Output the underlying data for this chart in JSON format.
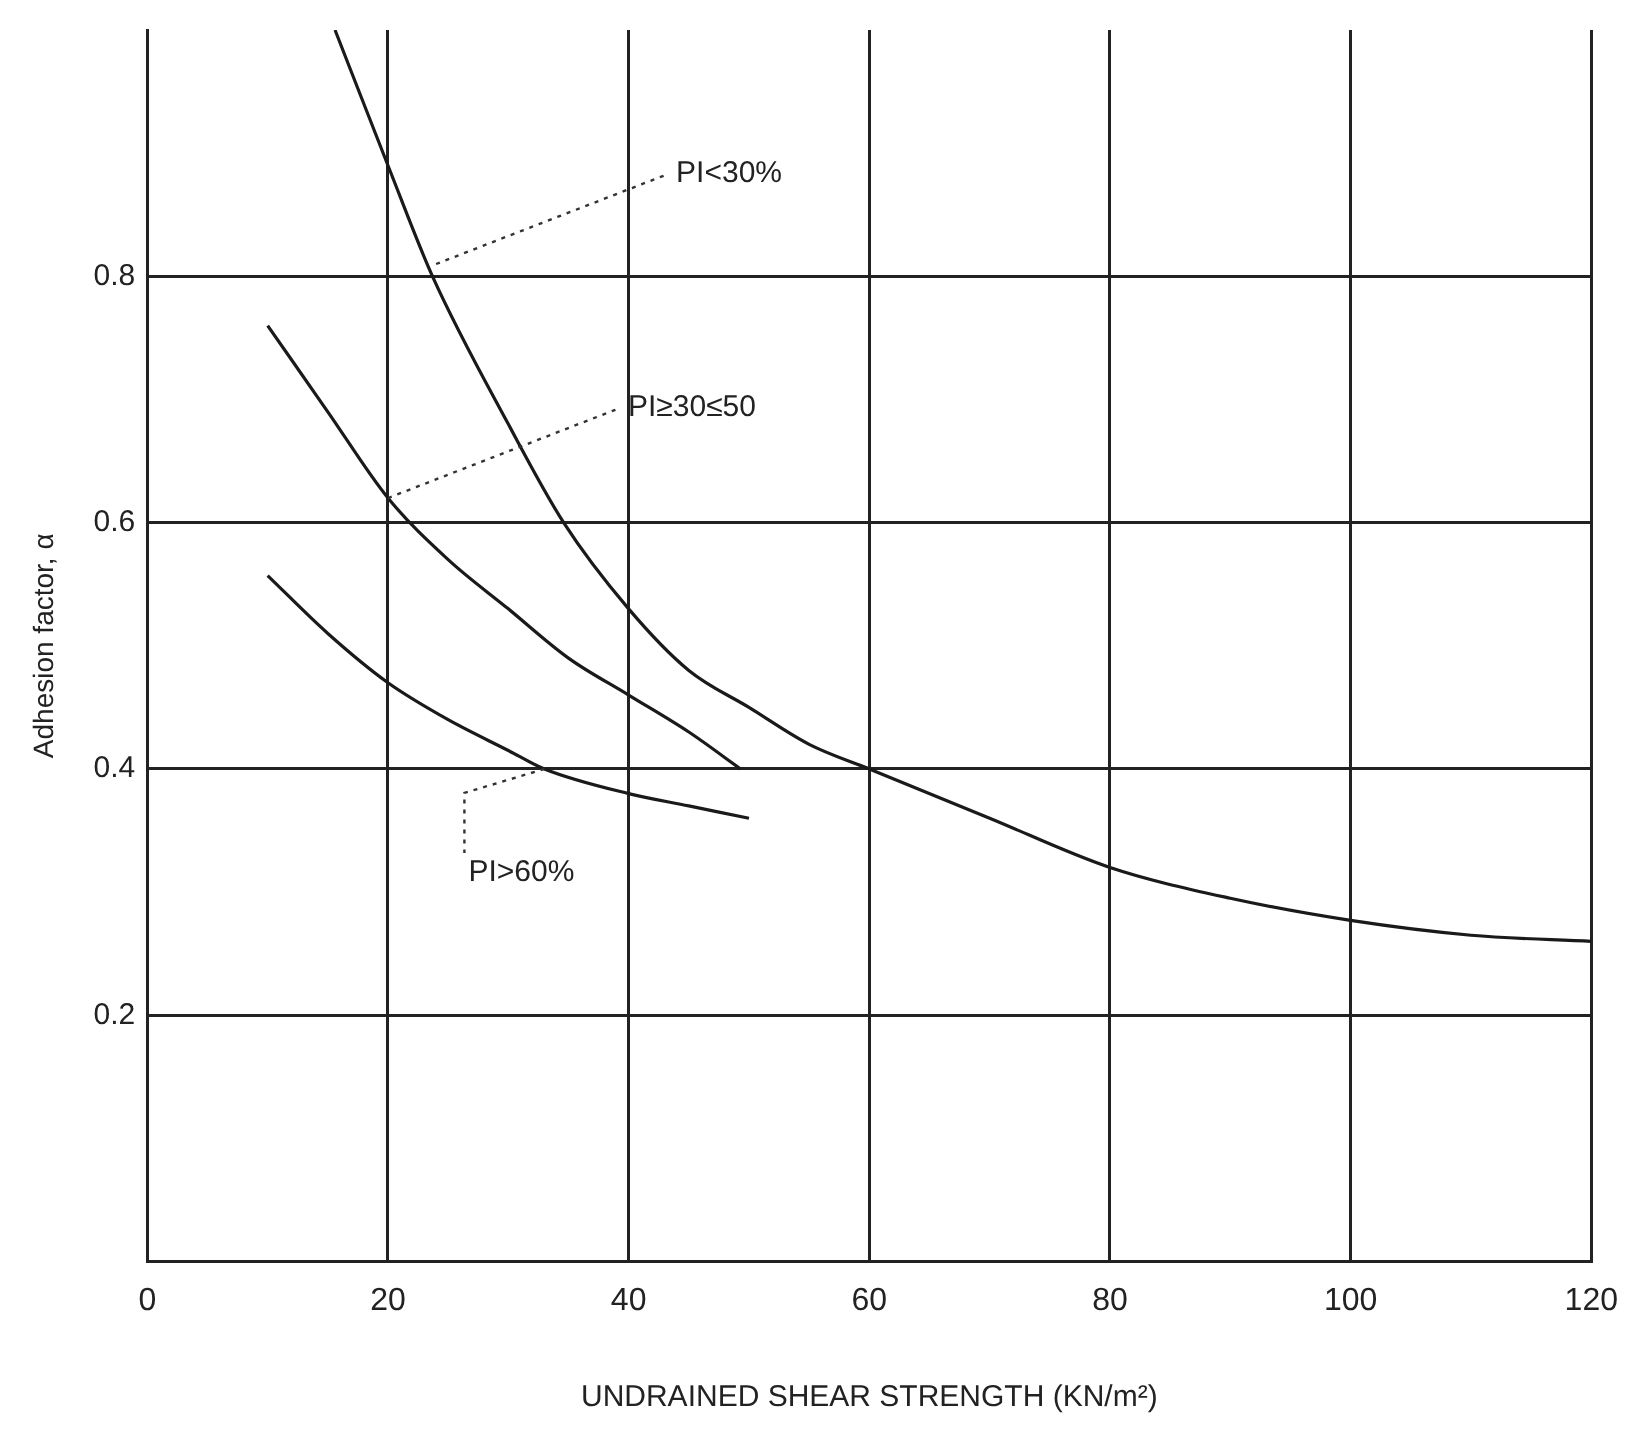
{
  "chart_data": {
    "type": "line",
    "xlabel": "UNDRAINED SHEAR STRENGTH (KN/m²)",
    "ylabel": "Adhesion factor, α",
    "xlim": [
      0,
      120
    ],
    "xticks": [
      0,
      20,
      40,
      60,
      80,
      100,
      120
    ],
    "ylim": [
      0,
      1.0
    ],
    "yticks": [
      0.2,
      0.4,
      0.6,
      0.8
    ],
    "grid": true,
    "legend": false,
    "marker": "none",
    "line_style": "solid",
    "series": [
      {
        "color": "#1a1a1a",
        "x": [
          15.6,
          20,
          23.7,
          30,
          34.6,
          40,
          45,
          50,
          55,
          60,
          70,
          80,
          90,
          100,
          110,
          120
        ],
        "values": [
          1.0,
          0.89,
          0.8,
          0.68,
          0.6,
          0.53,
          0.48,
          0.45,
          0.42,
          0.4,
          0.36,
          0.32,
          0.295,
          0.277,
          0.265,
          0.26
        ]
      },
      {
        "color": "#1a1a1a",
        "x": [
          10,
          15,
          20,
          25,
          30,
          35,
          40,
          45,
          49.3
        ],
        "values": [
          0.76,
          0.69,
          0.62,
          0.57,
          0.53,
          0.49,
          0.46,
          0.43,
          0.4
        ]
      },
      {
        "color": "#1a1a1a",
        "x": [
          10,
          15,
          20,
          25,
          30,
          33,
          40,
          45,
          50
        ],
        "values": [
          0.557,
          0.51,
          0.47,
          0.44,
          0.415,
          0.4,
          0.38,
          0.37,
          0.36
        ]
      }
    ],
    "annotations": [
      {
        "text": "PI<30%",
        "x": 24,
        "y": 0.81
      },
      {
        "text": "PI≥30≤50",
        "x": 20,
        "y": 0.62
      },
      {
        "text": "PI>60%",
        "x": 33,
        "y": 0.4
      }
    ]
  }
}
